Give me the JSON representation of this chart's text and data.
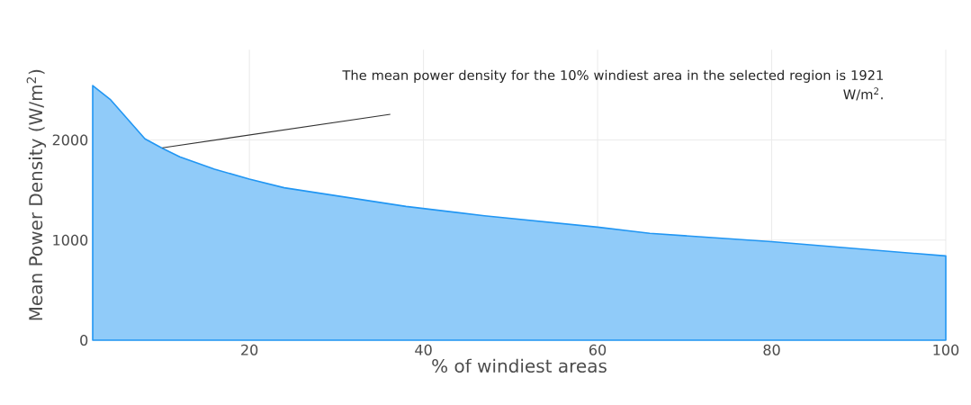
{
  "chart_data": {
    "type": "area",
    "xlabel": "% of windiest areas",
    "ylabel": "Mean Power Density (W/m$^{2}$)",
    "x": [
      2,
      4,
      8,
      10,
      12,
      16,
      20,
      24,
      38,
      47,
      60,
      66,
      80,
      100
    ],
    "series": [
      {
        "color": "#2196f3",
        "values": [
          2543,
          2406,
          2011,
          1917,
          1831,
          1708,
          1608,
          1522,
          1336,
          1243,
          1129,
          1067,
          984,
          841
        ]
      }
    ],
    "xlim": [
      2,
      100
    ],
    "ylim": [
      0,
      2900
    ],
    "xticks": [
      20,
      40,
      60,
      80,
      100
    ],
    "yticks": [
      0,
      1000,
      2000
    ],
    "grid": true,
    "annotations": [
      {
        "text": "The mean power density for the 10% windiest area in the selected region is 1921 W/m$^{2}$.",
        "x": 10,
        "y": 1921
      }
    ]
  }
}
